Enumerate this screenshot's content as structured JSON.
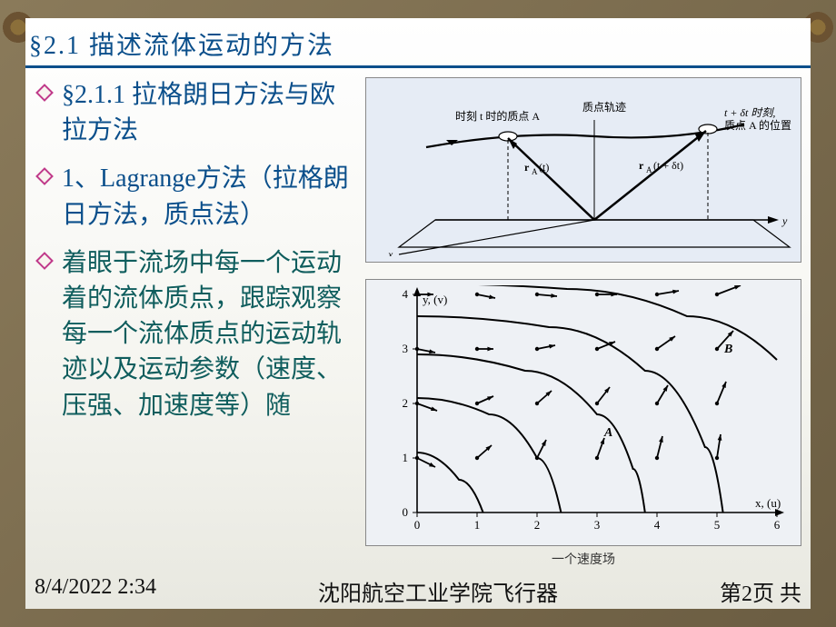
{
  "title": {
    "section_num": "§2.1",
    "section_text": "描述流体运动的方法"
  },
  "bullets": [
    {
      "style": "headline",
      "text": "  §2.1.1  拉格朗日方法与欧拉方法"
    },
    {
      "style": "headline",
      "text": "1、Lagrange方法（拉格朗日方法，质点法）"
    },
    {
      "style": "body",
      "text": "          着眼于流场中每一个运动着的流体质点，跟踪观察每一个流体质点的运动轨迹以及运动参数（速度、压强、加速度等）随"
    }
  ],
  "figure1": {
    "bg": "#e6ecf5",
    "labels": {
      "left_label": "时刻 t 时的质点 A",
      "center_label": "质点轨迹",
      "right_label_top": "t + δt 时刻,",
      "right_label_bottom": "质点 A 的位置",
      "rA_t": "r_A(t)",
      "rA_dt": "r_A(t + δt)"
    },
    "axis_x": "y",
    "axis_y": "x",
    "stroke": "#000000"
  },
  "figure2": {
    "bg": "#eef1f5",
    "xlabel": "x, (u)",
    "ylabel": "y, (v)",
    "xmin": 0,
    "xmax": 6,
    "xtick_step": 1,
    "ymin": 0,
    "ymax": 4,
    "ytick_step": 1,
    "stroke": "#000000",
    "point_A_label": "A",
    "point_B_label": "B",
    "streamlines": [
      [
        [
          0,
          4.2
        ],
        [
          2.5,
          4.1
        ],
        [
          4.5,
          3.6
        ],
        [
          6,
          2.8
        ]
      ],
      [
        [
          0,
          3.6
        ],
        [
          2.2,
          3.4
        ],
        [
          3.8,
          2.6
        ],
        [
          4.8,
          1.2
        ],
        [
          5.1,
          0
        ]
      ],
      [
        [
          0,
          2.9
        ],
        [
          1.8,
          2.6
        ],
        [
          3.0,
          1.8
        ],
        [
          3.6,
          0.8
        ],
        [
          3.8,
          0
        ]
      ],
      [
        [
          0,
          2.1
        ],
        [
          1.2,
          1.8
        ],
        [
          2.0,
          1.0
        ],
        [
          2.4,
          0
        ]
      ],
      [
        [
          0,
          1.1
        ],
        [
          0.7,
          0.6
        ],
        [
          1.1,
          0
        ]
      ]
    ],
    "vectors": [
      [
        0,
        1,
        20,
        10
      ],
      [
        0,
        2,
        22,
        8
      ],
      [
        0,
        3,
        20,
        4
      ],
      [
        0,
        4,
        18,
        0
      ],
      [
        1,
        1,
        16,
        -14
      ],
      [
        1,
        2,
        18,
        -8
      ],
      [
        1,
        3,
        18,
        0
      ],
      [
        1,
        4,
        20,
        4
      ],
      [
        2,
        1,
        10,
        -20
      ],
      [
        2,
        2,
        16,
        -14
      ],
      [
        2,
        3,
        20,
        -4
      ],
      [
        2,
        4,
        22,
        2
      ],
      [
        3,
        1,
        8,
        -22
      ],
      [
        3,
        2,
        14,
        -18
      ],
      [
        3,
        3,
        20,
        -8
      ],
      [
        3,
        4,
        22,
        0
      ],
      [
        4,
        1,
        6,
        -24
      ],
      [
        4,
        2,
        12,
        -20
      ],
      [
        4,
        3,
        20,
        -14
      ],
      [
        4,
        4,
        24,
        -4
      ],
      [
        5,
        1,
        4,
        -26
      ],
      [
        5,
        2,
        10,
        -24
      ],
      [
        5,
        3,
        18,
        -20
      ],
      [
        5,
        4,
        26,
        -10
      ]
    ]
  },
  "caption": "一个速度场",
  "footer": {
    "date": "8/4/2022 2:34",
    "org": "沈阳航空工业学院飞行器",
    "page": "第2页    共"
  },
  "colors": {
    "title_color": "#0b4f8b",
    "underline_color": "#0b4f8b",
    "teal_text": "#0f5d5d",
    "diamond_border": "#c0398a",
    "panel_bg_top": "#ffffff",
    "panel_bg_bottom": "#e8e8e0",
    "page_bg": "#7a6a46"
  },
  "fonts": {
    "title_size": 28,
    "body_size": 28,
    "footer_size": 24
  }
}
